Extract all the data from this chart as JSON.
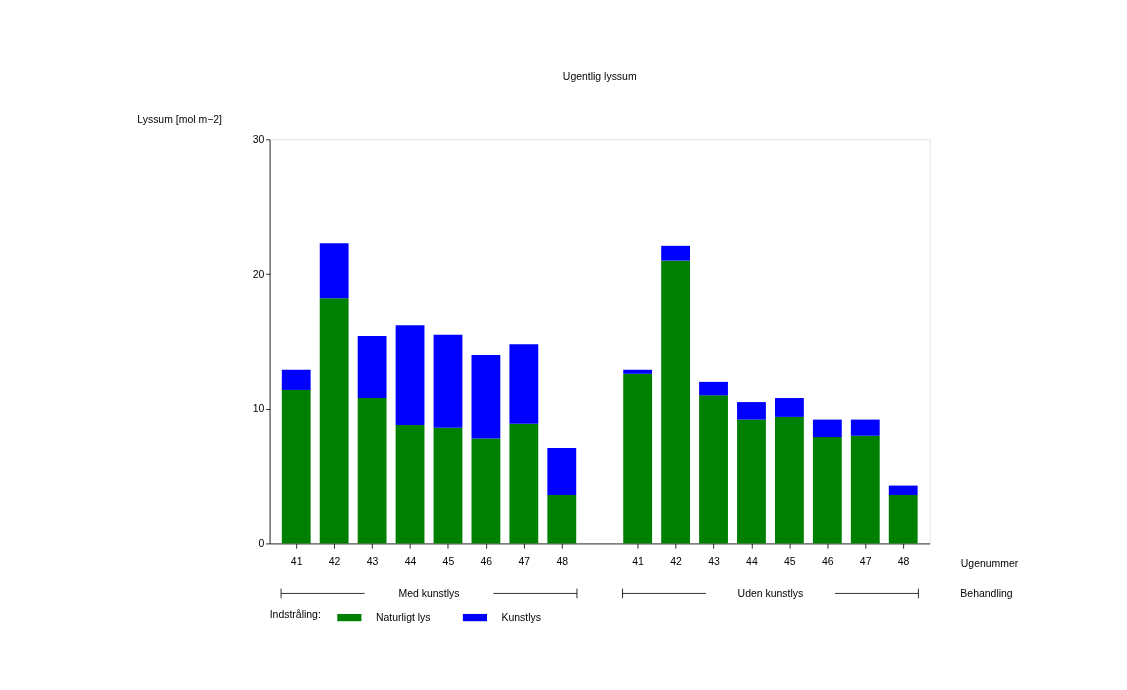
{
  "chart_data": {
    "type": "bar",
    "title": "Ugentlig lyssum",
    "xlabel": "Ugenummer",
    "ylabel": "Lyssum [mol m−2]",
    "legend_title": "Indstråling:",
    "categories": [
      "41",
      "42",
      "43",
      "44",
      "45",
      "46",
      "47",
      "48",
      "41",
      "42",
      "43",
      "44",
      "45",
      "46",
      "47",
      "48"
    ],
    "stacked": true,
    "series": [
      {
        "name": "Naturligt lys",
        "color": "#008000",
        "values": [
          11.4,
          18.2,
          10.8,
          8.8,
          8.6,
          7.8,
          8.9,
          3.6,
          12.6,
          21.0,
          11.0,
          9.2,
          9.4,
          7.9,
          8.0,
          3.6
        ]
      },
      {
        "name": "Kunstlys",
        "color": "#0000ff",
        "values": [
          1.5,
          4.1,
          4.6,
          7.4,
          6.9,
          6.2,
          5.9,
          3.5,
          0.3,
          1.1,
          1.0,
          1.3,
          1.4,
          1.3,
          1.2,
          0.7
        ]
      }
    ],
    "ylim": [
      0,
      30
    ],
    "yticks": [
      0,
      10,
      20,
      30
    ],
    "grid": false,
    "legend": "bottom",
    "annotations": [
      "Med kunstlys",
      "Uden kunstlys",
      "Behandling"
    ]
  }
}
